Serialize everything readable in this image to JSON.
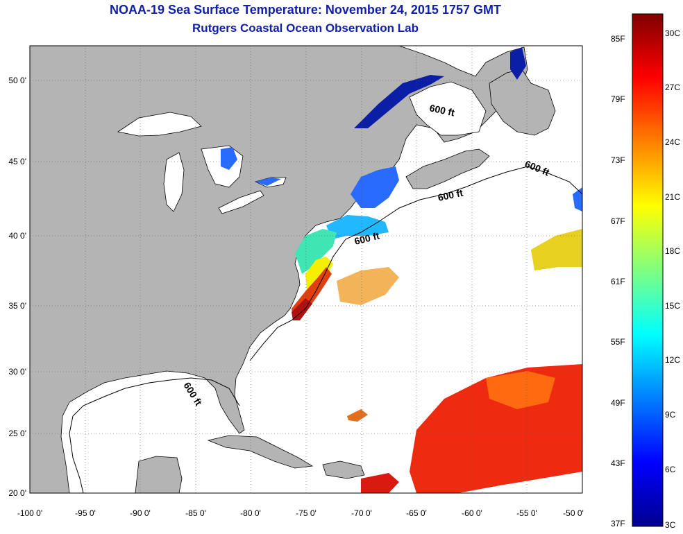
{
  "title": "NOAA-19 Sea Surface Temperature:  November 24, 2015 1757 GMT",
  "subtitle": "Rutgers Coastal Ocean Observation Lab",
  "lat_ticks": [
    "50 0'",
    "45 0'",
    "40 0'",
    "35 0'",
    "30 0'",
    "25 0'",
    "20 0'"
  ],
  "lon_ticks": [
    "-100 0'",
    "-95 0'",
    "-90 0'",
    "-85 0'",
    "-80 0'",
    "-75 0'",
    "-70 0'",
    "-65 0'",
    "-60 0'",
    "-55 0'",
    "-50 0'"
  ],
  "isobath_label": "600 ft",
  "colorbar": {
    "fahrenheit": [
      "85F",
      "79F",
      "73F",
      "67F",
      "61F",
      "55F",
      "49F",
      "43F",
      "37F"
    ],
    "celsius": [
      "30C",
      "27C",
      "24C",
      "21C",
      "18C",
      "15C",
      "12C",
      "9C",
      "6C",
      "3C"
    ]
  },
  "colors": {
    "land": "#b4b4b4",
    "ocean": "#ffffff",
    "title": "#1020a8"
  }
}
